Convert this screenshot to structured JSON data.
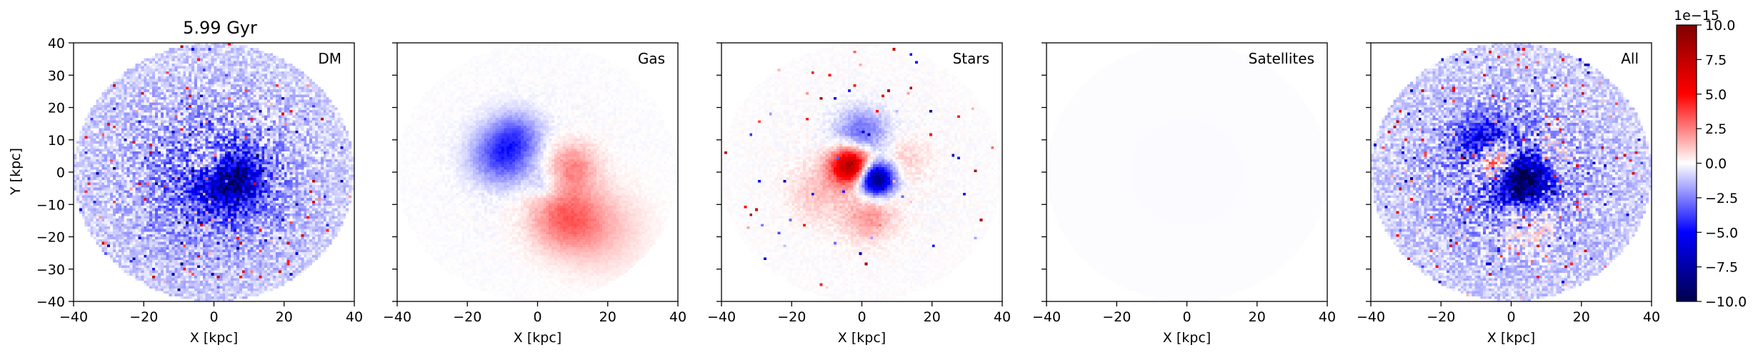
{
  "figure": {
    "title": "5.99 Gyr",
    "ylabel": "Y [kpc]",
    "xlabel": "X [kpc]",
    "colorbar": {
      "exponent_label": "1e−15",
      "range": [
        -10.0,
        10.0
      ],
      "ticks": [
        -10.0,
        -7.5,
        -5.0,
        -2.5,
        0.0,
        2.5,
        5.0,
        7.5,
        10.0
      ],
      "tick_labels": [
        "−10.0",
        "−7.5",
        "−5.0",
        "−2.5",
        "0.0",
        "2.5",
        "5.0",
        "7.5",
        "10.0"
      ],
      "colormap": "seismic",
      "colors": {
        "low": "#00004c",
        "mid_low": "#0000ff",
        "center": "#ffffff",
        "mid_high": "#ff0000",
        "high": "#800000"
      }
    }
  },
  "chart_data": [
    {
      "type": "heatmap",
      "panel_label": "DM",
      "xlabel": "X [kpc]",
      "ylabel": "Y [kpc]",
      "xlim": [
        -40,
        40
      ],
      "ylim": [
        -40,
        40
      ],
      "xticks": [
        -40,
        -20,
        0,
        20,
        40
      ],
      "xtick_labels": [
        "−40",
        "−20",
        "0",
        "20",
        "40"
      ],
      "yticks": [
        -40,
        -30,
        -20,
        -10,
        0,
        10,
        20,
        30,
        40
      ],
      "ytick_labels": [
        "−40",
        "−30",
        "−20",
        "−10",
        "0",
        "10",
        "20",
        "30",
        "40"
      ],
      "show_y_ticklabels": true,
      "disc_radius": 40,
      "background_value": -1.3,
      "noise_amplitude": 1.0,
      "speckle_fraction": 0.03,
      "features": [
        {
          "x": 4,
          "y": -2,
          "sigma": 6,
          "value": -6.5
        },
        {
          "x": -1,
          "y": 3,
          "sigma": 4,
          "value": 4.0
        },
        {
          "x": 0,
          "y": -5,
          "sigma": 14,
          "value": -1.8
        }
      ]
    },
    {
      "type": "heatmap",
      "panel_label": "Gas",
      "xlabel": "X [kpc]",
      "xlim": [
        -40,
        40
      ],
      "ylim": [
        -40,
        40
      ],
      "xticks": [
        -40,
        -20,
        0,
        20,
        40
      ],
      "xtick_labels": [
        "−40",
        "−20",
        "0",
        "20",
        "40"
      ],
      "yticks": [
        -40,
        -30,
        -20,
        -10,
        0,
        10,
        20,
        30,
        40
      ],
      "show_y_ticklabels": false,
      "disc_radius": 40,
      "background_value": -0.05,
      "noise_amplitude": 0.15,
      "speckle_fraction": 0.0,
      "features": [
        {
          "x": -10,
          "y": 5,
          "sigma": 6,
          "value": -3.8
        },
        {
          "x": -6,
          "y": 12,
          "sigma": 5,
          "value": -2.2
        },
        {
          "x": 10,
          "y": 2,
          "sigma": 5,
          "value": 2.2
        },
        {
          "x": 8,
          "y": -14,
          "sigma": 7,
          "value": 2.8
        },
        {
          "x": 18,
          "y": -18,
          "sigma": 9,
          "value": 1.2
        },
        {
          "x": 2,
          "y": -4,
          "sigma": 3,
          "value": -1.2
        }
      ]
    },
    {
      "type": "heatmap",
      "panel_label": "Stars",
      "xlabel": "X [kpc]",
      "xlim": [
        -40,
        40
      ],
      "ylim": [
        -40,
        40
      ],
      "xticks": [
        -40,
        -20,
        0,
        20,
        40
      ],
      "xtick_labels": [
        "−40",
        "−20",
        "0",
        "20",
        "40"
      ],
      "yticks": [
        -40,
        -30,
        -20,
        -10,
        0,
        10,
        20,
        30,
        40
      ],
      "show_y_ticklabels": false,
      "disc_radius": 40,
      "background_value": 0.0,
      "noise_amplitude": 0.2,
      "speckle_fraction": 0.01,
      "features": [
        {
          "x": -3,
          "y": 2,
          "sigma": 4,
          "value": 8.5
        },
        {
          "x": 4,
          "y": -2,
          "sigma": 3.5,
          "value": -9.5
        },
        {
          "x": 0,
          "y": 12,
          "sigma": 5,
          "value": -3.0
        },
        {
          "x": 2,
          "y": -14,
          "sigma": 5,
          "value": 2.0
        },
        {
          "x": -12,
          "y": -6,
          "sigma": 6,
          "value": 1.2
        },
        {
          "x": 12,
          "y": 4,
          "sigma": 5,
          "value": 0.9
        }
      ]
    },
    {
      "type": "heatmap",
      "panel_label": "Satellites",
      "xlabel": "X [kpc]",
      "xlim": [
        -40,
        40
      ],
      "ylim": [
        -40,
        40
      ],
      "xticks": [
        -40,
        -20,
        0,
        20,
        40
      ],
      "xtick_labels": [
        "−40",
        "−20",
        "0",
        "20",
        "40"
      ],
      "yticks": [
        -40,
        -30,
        -20,
        -10,
        0,
        10,
        20,
        30,
        40
      ],
      "show_y_ticklabels": false,
      "disc_radius": 40,
      "background_value": -0.08,
      "noise_amplitude": 0.0,
      "speckle_fraction": 0.0,
      "features": []
    },
    {
      "type": "heatmap",
      "panel_label": "All",
      "xlabel": "X [kpc]",
      "xlim": [
        -40,
        40
      ],
      "ylim": [
        -40,
        40
      ],
      "xticks": [
        -40,
        -20,
        0,
        20,
        40
      ],
      "xtick_labels": [
        "−40",
        "−20",
        "0",
        "20",
        "40"
      ],
      "yticks": [
        -40,
        -30,
        -20,
        -10,
        0,
        10,
        20,
        30,
        40
      ],
      "show_y_ticklabels": false,
      "disc_radius": 40,
      "background_value": -1.3,
      "noise_amplitude": 1.0,
      "speckle_fraction": 0.03,
      "features": [
        {
          "x": 3,
          "y": -2,
          "sigma": 5,
          "value": -8.5
        },
        {
          "x": -4,
          "y": 3,
          "sigma": 4,
          "value": 7.0
        },
        {
          "x": -8,
          "y": 10,
          "sigma": 5,
          "value": -4.0
        },
        {
          "x": 12,
          "y": 6,
          "sigma": 4,
          "value": 2.0
        },
        {
          "x": 5,
          "y": -16,
          "sigma": 6,
          "value": 2.0
        },
        {
          "x": 0,
          "y": -3,
          "sigma": 14,
          "value": -1.6
        }
      ]
    }
  ]
}
